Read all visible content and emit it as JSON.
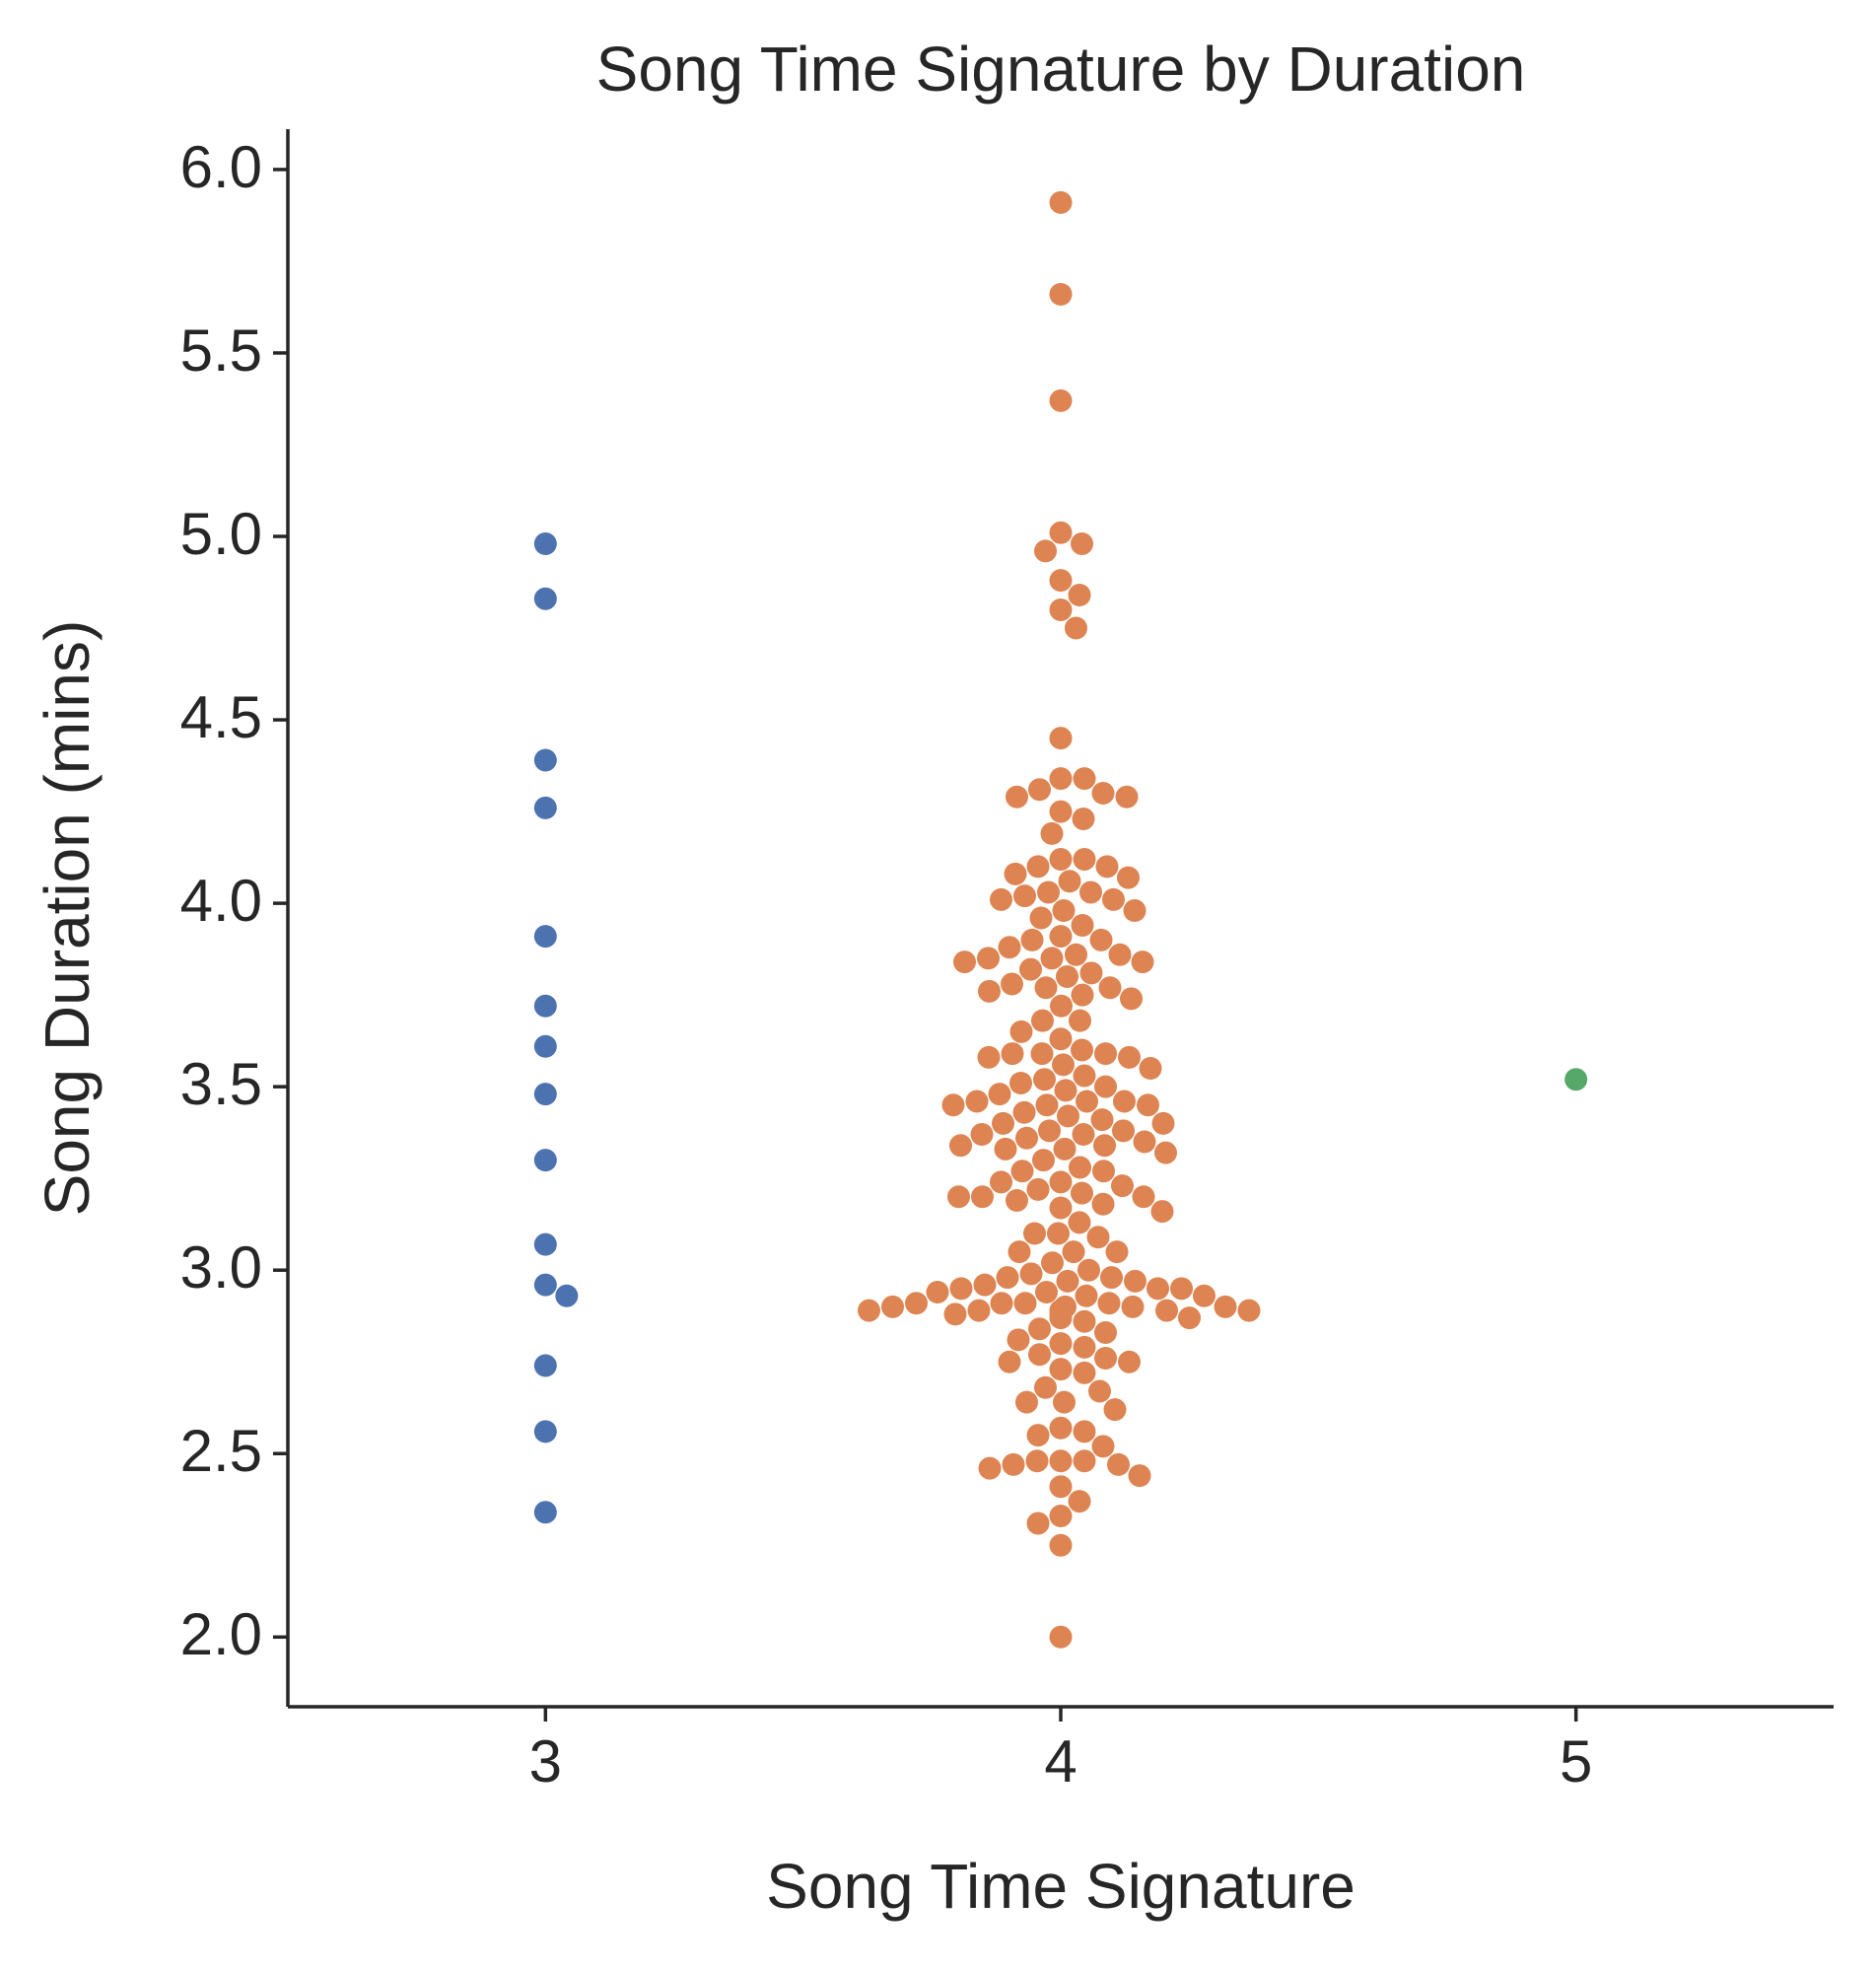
{
  "chart_data": {
    "type": "swarm",
    "title": "Song Time Signature by Duration",
    "x_label": "Song Time Signature",
    "y_label": "Song Duration (mins)",
    "categories": [
      3,
      4,
      5
    ],
    "colors": [
      "#4c72b0",
      "#dd8452",
      "#55a868"
    ],
    "values": [
      [
        4.98,
        4.83,
        4.39,
        4.26,
        3.91,
        3.72,
        3.61,
        3.48,
        3.3,
        3.07,
        2.96,
        2.93,
        2.74,
        2.56,
        2.34
      ],
      [
        5.91,
        5.66,
        5.37,
        5.01,
        4.98,
        4.96,
        4.88,
        4.84,
        4.8,
        4.75,
        4.45,
        4.34,
        4.34,
        4.31,
        4.3,
        4.29,
        4.29,
        4.25,
        4.23,
        4.19,
        4.12,
        4.12,
        4.1,
        4.1,
        4.08,
        4.07,
        4.06,
        4.03,
        4.03,
        4.02,
        4.01,
        4.01,
        3.98,
        3.98,
        3.96,
        3.94,
        3.91,
        3.9,
        3.9,
        3.88,
        3.86,
        3.86,
        3.85,
        3.85,
        3.84,
        3.84,
        3.82,
        3.81,
        3.8,
        3.78,
        3.77,
        3.77,
        3.76,
        3.75,
        3.74,
        3.72,
        3.68,
        3.68,
        3.65,
        3.63,
        3.6,
        3.59,
        3.59,
        3.59,
        3.58,
        3.58,
        3.56,
        3.55,
        3.53,
        3.52,
        3.51,
        3.5,
        3.49,
        3.48,
        3.46,
        3.46,
        3.46,
        3.45,
        3.45,
        3.45,
        3.43,
        3.42,
        3.41,
        3.4,
        3.4,
        3.38,
        3.38,
        3.37,
        3.37,
        3.36,
        3.35,
        3.34,
        3.34,
        3.33,
        3.33,
        3.32,
        3.3,
        3.28,
        3.27,
        3.27,
        3.24,
        3.24,
        3.23,
        3.22,
        3.21,
        3.2,
        3.2,
        3.2,
        3.19,
        3.18,
        3.17,
        3.16,
        3.13,
        3.1,
        3.1,
        3.09,
        3.05,
        3.05,
        3.05,
        3.02,
        3.0,
        2.99,
        2.98,
        2.98,
        2.97,
        2.97,
        2.96,
        2.95,
        2.95,
        2.95,
        2.94,
        2.94,
        2.93,
        2.93,
        2.91,
        2.91,
        2.91,
        2.91,
        2.9,
        2.9,
        2.9,
        2.9,
        2.89,
        2.89,
        2.89,
        2.89,
        2.89,
        2.88,
        2.88,
        2.87,
        2.87,
        2.86,
        2.84,
        2.83,
        2.81,
        2.8,
        2.79,
        2.77,
        2.76,
        2.75,
        2.75,
        2.73,
        2.72,
        2.68,
        2.67,
        2.64,
        2.64,
        2.62,
        2.57,
        2.56,
        2.55,
        2.52,
        2.48,
        2.48,
        2.48,
        2.47,
        2.47,
        2.46,
        2.44,
        2.41,
        2.37,
        2.33,
        2.31,
        2.25,
        2.0
      ],
      [
        3.52
      ]
    ],
    "xlim": [
      -0.5,
      2.5
    ],
    "ylim": [
      1.81,
      6.11
    ],
    "yticks": [
      {
        "value": 2,
        "label": "2.0"
      },
      2.5,
      {
        "value": 3,
        "label": "3.0"
      },
      3.5,
      {
        "value": 4,
        "label": "4.0"
      },
      4.5,
      {
        "value": 5,
        "label": "5.0"
      },
      5.5,
      {
        "value": 6,
        "label": "6.0"
      }
    ],
    "grid": false
  }
}
